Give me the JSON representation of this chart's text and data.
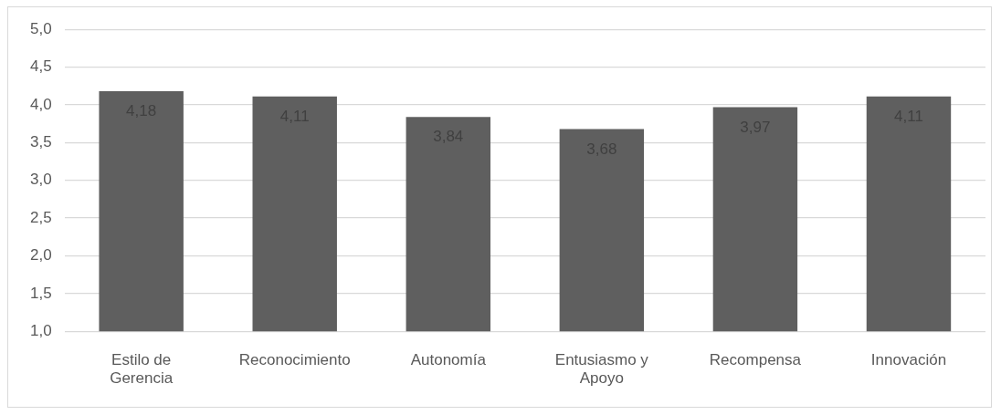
{
  "chart_data": {
    "type": "bar",
    "categories": [
      "Estilo de Gerencia",
      "Reconocimiento",
      "Autonomía",
      "Entusiasmo y Apoyo",
      "Recompensa",
      "Innovación"
    ],
    "values": [
      4.18,
      4.11,
      3.84,
      3.68,
      3.97,
      4.11
    ],
    "value_labels": [
      "4,18",
      "4,11",
      "3,84",
      "3,68",
      "3,97",
      "4,11"
    ],
    "color": "#5f5f5f",
    "ylim": [
      1,
      5
    ],
    "yticks": [
      {
        "value": 1,
        "label": "1,0"
      },
      {
        "value": 1.5,
        "label": "1,5"
      },
      {
        "value": 2,
        "label": "2,0"
      },
      {
        "value": 2.5,
        "label": "2,5"
      },
      {
        "value": 3,
        "label": "3,0"
      },
      {
        "value": 3.5,
        "label": "3,5"
      },
      {
        "value": 4,
        "label": "4,0"
      },
      {
        "value": 4.5,
        "label": "4,5"
      },
      {
        "value": 5,
        "label": "5,0"
      }
    ],
    "grid": "y"
  }
}
